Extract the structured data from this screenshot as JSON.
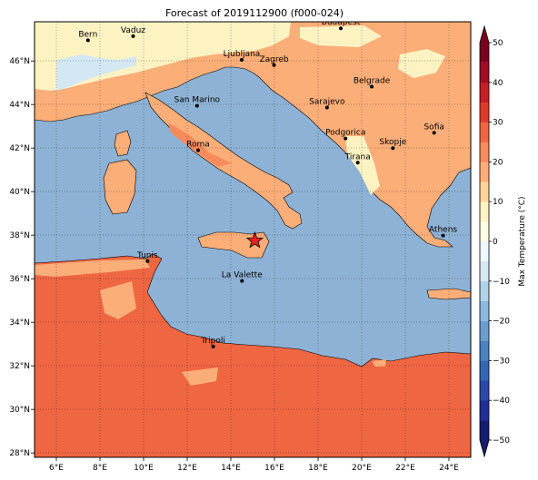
{
  "title": "Forecast of 2019112900 (f000-024)",
  "map": {
    "lon_range": [
      5,
      25
    ],
    "lat_range": [
      27.8,
      47.8
    ],
    "lon_ticks": [
      "6°E",
      "8°E",
      "10°E",
      "12°E",
      "14°E",
      "16°E",
      "18°E",
      "20°E",
      "22°E",
      "24°E"
    ],
    "lat_ticks": [
      "28°N",
      "30°N",
      "32°N",
      "34°N",
      "36°N",
      "38°N",
      "40°N",
      "42°N",
      "44°N",
      "46°N"
    ],
    "grid": true,
    "cities": [
      {
        "name": "Bern",
        "lon": 7.45,
        "lat": 46.95
      },
      {
        "name": "Vaduz",
        "lon": 9.52,
        "lat": 47.14
      },
      {
        "name": "Budapest",
        "lon": 19.04,
        "lat": 47.5
      },
      {
        "name": "Ljubljana",
        "lon": 14.5,
        "lat": 46.05
      },
      {
        "name": "Zagreb",
        "lon": 15.98,
        "lat": 45.81
      },
      {
        "name": "Belgrade",
        "lon": 20.46,
        "lat": 44.82
      },
      {
        "name": "San Marino",
        "lon": 12.45,
        "lat": 43.94
      },
      {
        "name": "Sarajevo",
        "lon": 18.41,
        "lat": 43.86
      },
      {
        "name": "Sofia",
        "lon": 23.32,
        "lat": 42.7
      },
      {
        "name": "Podgorica",
        "lon": 19.26,
        "lat": 42.44
      },
      {
        "name": "Skopje",
        "lon": 21.43,
        "lat": 42.0
      },
      {
        "name": "Roma",
        "lon": 12.5,
        "lat": 41.9
      },
      {
        "name": "Tirana",
        "lon": 19.82,
        "lat": 41.33
      },
      {
        "name": "Athens",
        "lon": 23.73,
        "lat": 37.98
      },
      {
        "name": "Tunis",
        "lon": 10.18,
        "lat": 36.81
      },
      {
        "name": "La Valette",
        "lon": 14.51,
        "lat": 35.9
      },
      {
        "name": "Tripoli",
        "lon": 13.19,
        "lat": 32.89
      }
    ],
    "marker": {
      "symbol": "star",
      "lon": 15.1,
      "lat": 37.75,
      "color": "#e8231f"
    }
  },
  "colorbar": {
    "label": "Max Temperature (°C)",
    "ticks": [
      "50",
      "40",
      "30",
      "20",
      "10",
      "0",
      "−10",
      "−20",
      "−30",
      "−40",
      "−50"
    ],
    "bins": [
      {
        "from": -50,
        "to": -45,
        "color": "#151e6e"
      },
      {
        "from": -45,
        "to": -40,
        "color": "#1f2f92"
      },
      {
        "from": -40,
        "to": -35,
        "color": "#2a4aa6"
      },
      {
        "from": -35,
        "to": -30,
        "color": "#3466b1"
      },
      {
        "from": -30,
        "to": -25,
        "color": "#4b82bf"
      },
      {
        "from": -25,
        "to": -20,
        "color": "#6b9ecf"
      },
      {
        "from": -20,
        "to": -15,
        "color": "#8cb8de"
      },
      {
        "from": -15,
        "to": -10,
        "color": "#b2d2ea"
      },
      {
        "from": -10,
        "to": -5,
        "color": "#d4e8f3"
      },
      {
        "from": -5,
        "to": 0,
        "color": "#eef7fb"
      },
      {
        "from": 0,
        "to": 5,
        "color": "#fffbe3"
      },
      {
        "from": 5,
        "to": 10,
        "color": "#fdf2c2"
      },
      {
        "from": 10,
        "to": 15,
        "color": "#fdd59a"
      },
      {
        "from": 15,
        "to": 20,
        "color": "#fcae78"
      },
      {
        "from": 20,
        "to": 25,
        "color": "#f88b5c"
      },
      {
        "from": 25,
        "to": 30,
        "color": "#ef6643"
      },
      {
        "from": 30,
        "to": 35,
        "color": "#dc3b2c"
      },
      {
        "from": 35,
        "to": 40,
        "color": "#c41f26"
      },
      {
        "from": 40,
        "to": 45,
        "color": "#a10d24"
      },
      {
        "from": 45,
        "to": 50,
        "color": "#7a0020"
      }
    ]
  },
  "colors": {
    "sea": "#8eb2d5",
    "land_warm": "#f88b5c",
    "land_mild": "#fcae78",
    "land_cool": "#fdf2c2",
    "land_cold": "#d4e8f3",
    "land_hot": "#ef6643"
  }
}
